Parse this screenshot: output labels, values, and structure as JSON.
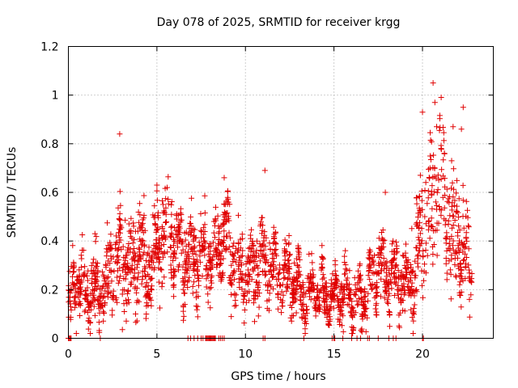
{
  "chart_data": {
    "type": "scatter",
    "title": "Day 078 of 2025, SRMTID for receiver krgg",
    "xlabel": "GPS time / hours",
    "ylabel": "SRMTID / TECUs",
    "xlim": [
      0,
      24
    ],
    "ylim": [
      0,
      1.2
    ],
    "xticks": [
      0,
      5,
      10,
      15,
      20
    ],
    "xtick_labels": [
      "0",
      "5",
      "10",
      "15",
      "20"
    ],
    "yticks": [
      0,
      0.2,
      0.4,
      0.6,
      0.8,
      1,
      1.2
    ],
    "ytick_labels": [
      "0",
      "0.2",
      "0.4",
      "0.6",
      "0.8",
      "1",
      "1.2"
    ],
    "grid": true,
    "marker": "+",
    "color": "#e00000",
    "series": [
      {
        "name": "SRMTID",
        "trend": {
          "x": [
            0,
            0.5,
            1,
            1.5,
            2,
            2.5,
            3,
            3.5,
            4,
            4.5,
            5,
            5.5,
            6,
            6.5,
            7,
            7.5,
            8,
            8.5,
            9,
            9.5,
            10,
            10.5,
            11,
            11.5,
            12,
            12.5,
            13,
            13.5,
            14,
            14.5,
            15,
            15.5,
            16,
            16.5,
            17,
            17.5,
            18,
            18.5,
            19,
            19.5,
            20,
            20.5,
            21,
            21.5,
            22,
            22.5,
            22.8
          ],
          "y": [
            0.12,
            0.25,
            0.18,
            0.2,
            0.22,
            0.3,
            0.35,
            0.28,
            0.32,
            0.3,
            0.38,
            0.45,
            0.42,
            0.3,
            0.33,
            0.35,
            0.3,
            0.4,
            0.42,
            0.28,
            0.27,
            0.3,
            0.33,
            0.28,
            0.27,
            0.25,
            0.2,
            0.18,
            0.2,
            0.18,
            0.15,
            0.2,
            0.17,
            0.15,
            0.22,
            0.3,
            0.27,
            0.25,
            0.2,
            0.25,
            0.45,
            0.55,
            0.6,
            0.5,
            0.4,
            0.35,
            0.3
          ]
        },
        "spread": {
          "x": [
            0,
            2,
            3,
            5,
            8,
            9,
            11,
            14,
            15,
            17,
            19,
            20,
            21,
            22,
            22.8
          ],
          "y": [
            0.1,
            0.12,
            0.2,
            0.16,
            0.14,
            0.16,
            0.12,
            0.08,
            0.08,
            0.1,
            0.12,
            0.25,
            0.3,
            0.25,
            0.12
          ]
        },
        "point_count": 2200,
        "highlights": [
          {
            "x": 2.9,
            "y": 0.84
          },
          {
            "x": 20.6,
            "y": 1.05
          },
          {
            "x": 20.7,
            "y": 0.97
          },
          {
            "x": 22.3,
            "y": 0.95
          },
          {
            "x": 20.0,
            "y": 0.93
          },
          {
            "x": 22.2,
            "y": 0.86
          },
          {
            "x": 20.8,
            "y": 0.87
          },
          {
            "x": 11.1,
            "y": 0.69
          },
          {
            "x": 5.0,
            "y": 0.63
          },
          {
            "x": 8.8,
            "y": 0.66
          },
          {
            "x": 17.9,
            "y": 0.6
          },
          {
            "x": 1.5,
            "y": 0.43
          }
        ],
        "zero_values_x": [
          0.0,
          0.05,
          0.1,
          0.12,
          0.15,
          1.8,
          6.75,
          6.9,
          7.1,
          7.3,
          7.5,
          7.6,
          7.75,
          7.8,
          7.85,
          7.9,
          7.95,
          8.0,
          8.05,
          8.1,
          8.15,
          8.2,
          8.25,
          8.3,
          8.5,
          8.6,
          8.7,
          8.8,
          11.0,
          11.1,
          13.3,
          14.9,
          15.0,
          15.05,
          15.5,
          16.0,
          16.3,
          16.5,
          16.9,
          17.0,
          17.5,
          18.1,
          18.35,
          18.5,
          20.0,
          20.05
        ]
      }
    ]
  }
}
